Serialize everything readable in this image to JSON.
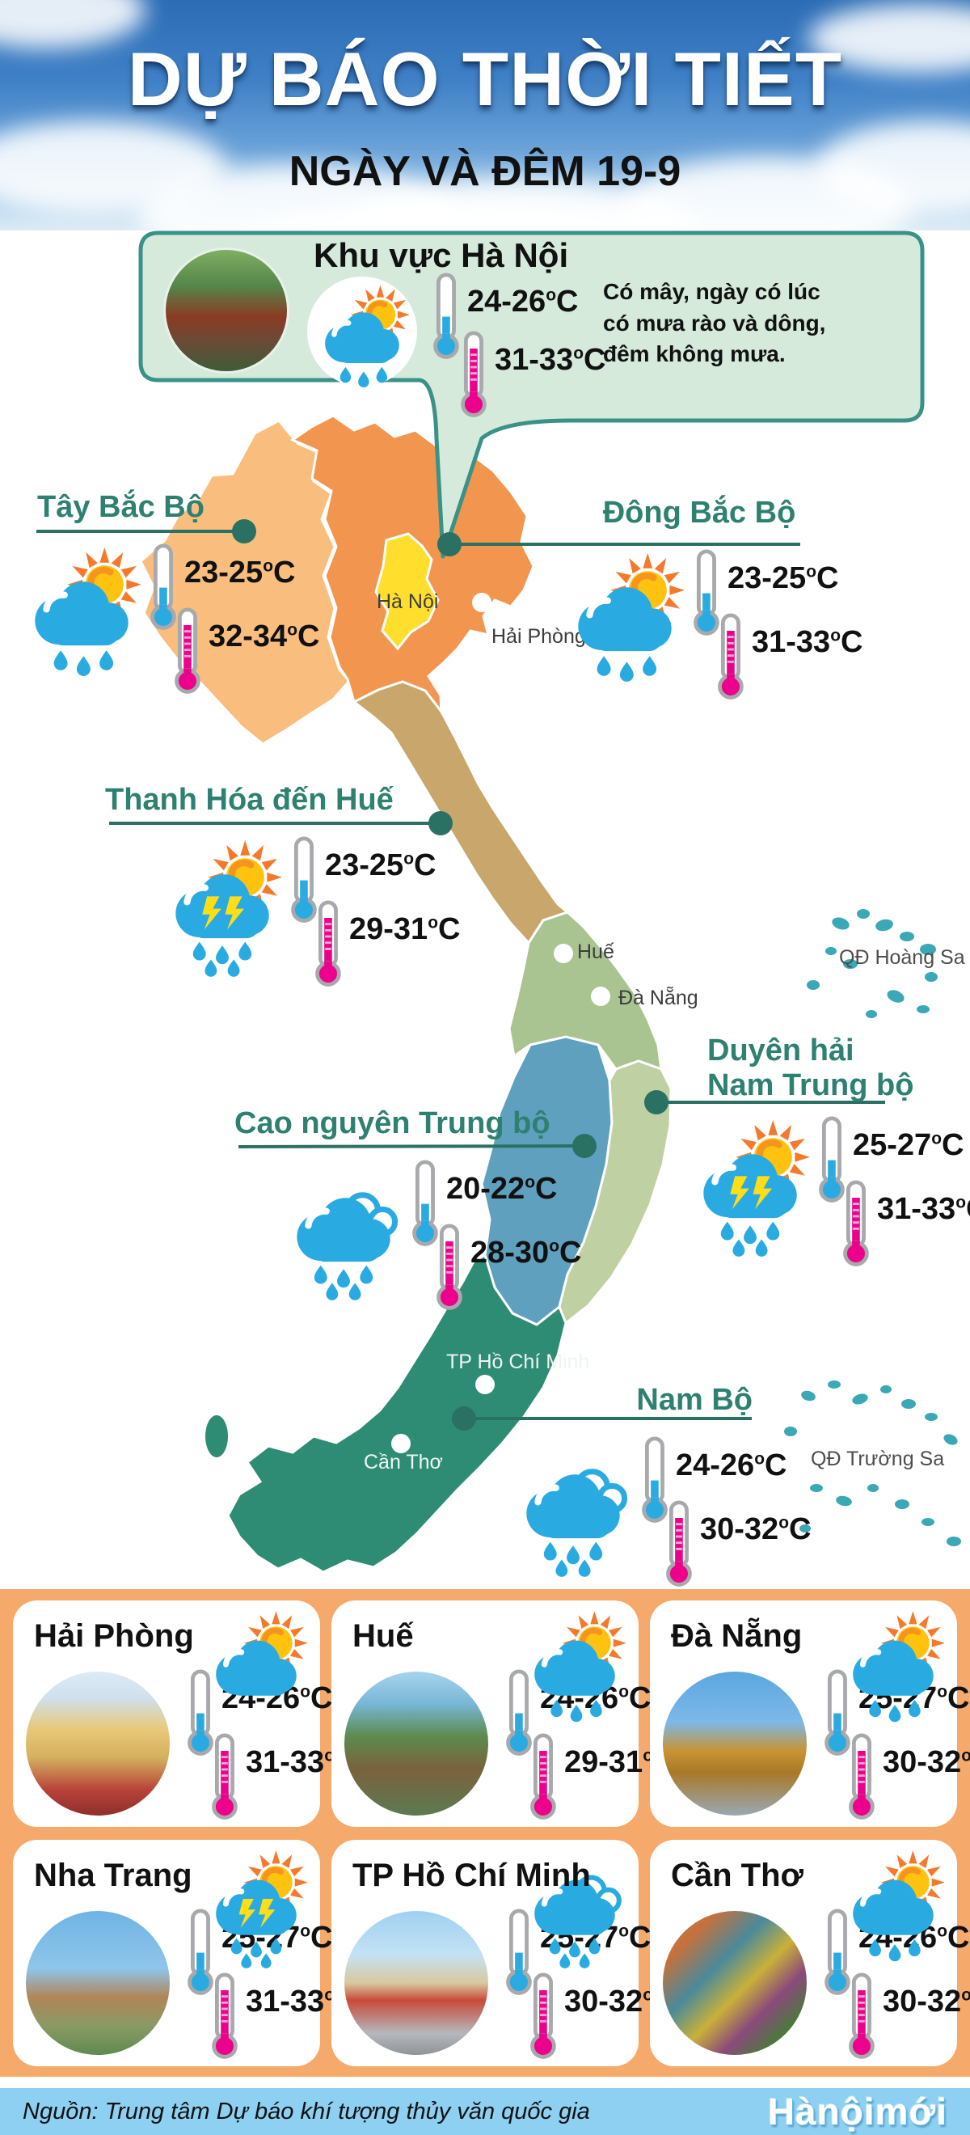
{
  "header": {
    "title": "DỰ BÁO THỜI TIẾT",
    "subtitle": "NGÀY VÀ ĐÊM 19-9"
  },
  "units": {
    "degree": "o",
    "celsius": "C"
  },
  "icon_names": {
    "day_thermo": "thermometer-day-icon",
    "night_thermo": "thermometer-night-icon"
  },
  "hanoi_callout": {
    "title": "Khu vực Hà Nội",
    "icon": "sun-cloud-rain-icon",
    "day_temp": "24-26",
    "night_temp": "31-33",
    "description": "Có mây, ngày có lúc có mưa rào và dông, đêm không mưa."
  },
  "regions": [
    {
      "name": "Tây Bắc Bộ",
      "icon": "sun-cloud-rain-icon",
      "day_temp": "23-25",
      "night_temp": "32-34"
    },
    {
      "name": "Đông Bắc Bộ",
      "icon": "sun-cloud-rain-icon",
      "day_temp": "23-25",
      "night_temp": "31-33"
    },
    {
      "name": "Thanh Hóa đến Huế",
      "icon": "sun-cloud-storm-rain-icon",
      "day_temp": "23-25",
      "night_temp": "29-31"
    },
    {
      "name": "Cao nguyên Trung bộ",
      "icon": "cloud-rain-icon",
      "day_temp": "20-22",
      "night_temp": "28-30"
    },
    {
      "name": "Duyên hải",
      "name_line2": "Nam Trung bộ",
      "icon": "sun-cloud-storm-rain-icon",
      "day_temp": "25-27",
      "night_temp": "31-33"
    },
    {
      "name": "Nam Bộ",
      "icon": "cloud-rain-icon",
      "day_temp": "24-26",
      "night_temp": "30-32"
    }
  ],
  "map_labels": {
    "hanoi": "Hà Nội",
    "hai_phong": "Hải Phòng",
    "hue": "Huế",
    "da_nang": "Đà Nẵng",
    "tp_hcm": "TP Hồ Chí Minh",
    "can_tho": "Cần Thơ",
    "hoang_sa": "QĐ Hoàng Sa",
    "truong_sa": "QĐ Trường Sa"
  },
  "cities": [
    {
      "name": "Hải Phòng",
      "icon": "sun-cloud-icon",
      "day_temp": "24-26",
      "night_temp": "31-33"
    },
    {
      "name": "Huế",
      "icon": "sun-cloud-rain-icon",
      "day_temp": "24-26",
      "night_temp": "29-31"
    },
    {
      "name": "Đà Nẵng",
      "icon": "sun-cloud-rain-icon",
      "day_temp": "25-27",
      "night_temp": "30-32"
    },
    {
      "name": "Nha Trang",
      "icon": "sun-cloud-storm-rain-icon",
      "day_temp": "25-27",
      "night_temp": "31-33"
    },
    {
      "name": "TP Hồ Chí Minh",
      "icon": "cloud-rain-icon",
      "day_temp": "25-27",
      "night_temp": "30-32"
    },
    {
      "name": "Cần Thơ",
      "icon": "sun-cloud-rain-icon",
      "day_temp": "24-26",
      "night_temp": "30-32"
    }
  ],
  "footer": {
    "source": "Nguồn: Trung tâm Dự báo khí tượng thủy văn quốc gia",
    "logo": "Hànộimới"
  },
  "colors": {
    "theme": {
      "accent-teal": "#2E8071",
      "day-blue": "#29ABE2",
      "night-pink": "#EC008C",
      "card-bg": "#F5A96B",
      "callout-bg": "#D5EADB",
      "callout-border": "#3A9188",
      "footer-blue": "#8DD0F2"
    },
    "map": {
      "northwest": "#F9BE7E",
      "northeast": "#F2954F",
      "hanoi": "#FFDE2E",
      "north_central": "#C9A66B",
      "central": "#A9C491",
      "highlands": "#5FA0BF",
      "coastal": "#BFD0A3",
      "south": "#2F8C74",
      "islands": "#3BA8B5"
    }
  }
}
